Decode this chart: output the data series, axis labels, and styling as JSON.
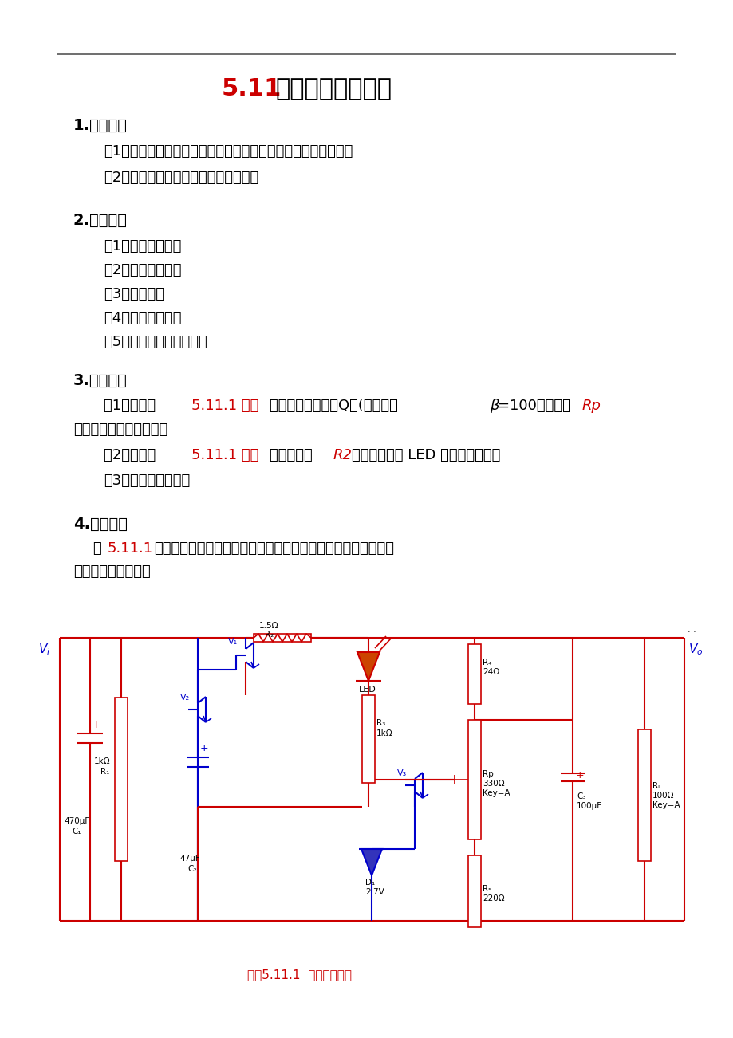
{
  "bg": "#ffffff",
  "red": "#cc0000",
  "blue": "#0000cc",
  "black": "#000000",
  "gray": "#555555",
  "title_num": "5.11",
  "title_text": "串联稳压电路实验",
  "sec1_head": "1.实验目的",
  "sec1_items": [
    "（1）研究稳压电源的主要特性，掌握串联稳压电路的工作原理。",
    "（2）掌握稳压电源的调试及测量方法。"
  ],
  "sec2_head": "2.实验仪器",
  "sec2_items": [
    "（1）直流电压表。",
    "（2）直流毫安表。",
    "（3）示波器。",
    "（4）数字万用表。",
    "（5）串联稳压电路模块。"
  ],
  "sec3_head": "3.预习要求",
  "sec4_head": "4.实验原理",
  "fig_caption": "图．5.11.1  串联稳压电路"
}
